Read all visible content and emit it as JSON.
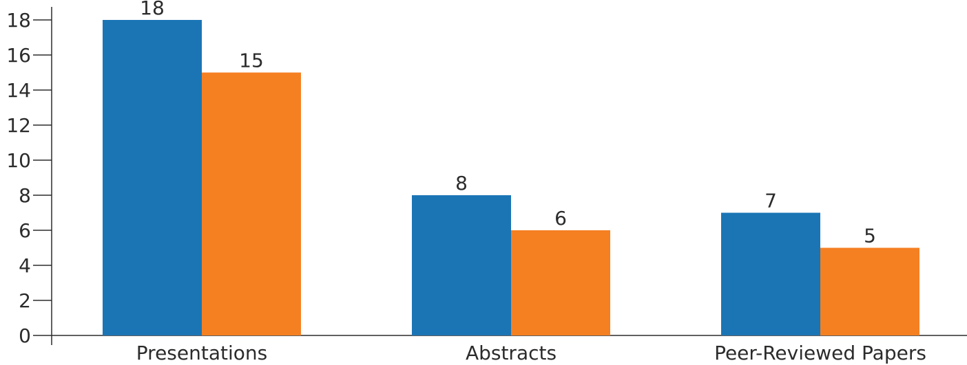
{
  "chart_data": {
    "type": "bar",
    "categories": [
      "Presentations",
      "Abstracts",
      "Peer-Reviewed Papers"
    ],
    "series": [
      {
        "values": [
          18,
          8,
          7
        ],
        "color": "#1B75B5"
      },
      {
        "values": [
          15,
          6,
          5
        ],
        "color": "#F58022"
      }
    ],
    "ylim": [
      0,
      18
    ],
    "yticks": [
      0,
      2,
      4,
      6,
      8,
      10,
      12,
      14,
      16,
      18
    ],
    "data_labels": true,
    "grid": false,
    "legend": "none"
  }
}
